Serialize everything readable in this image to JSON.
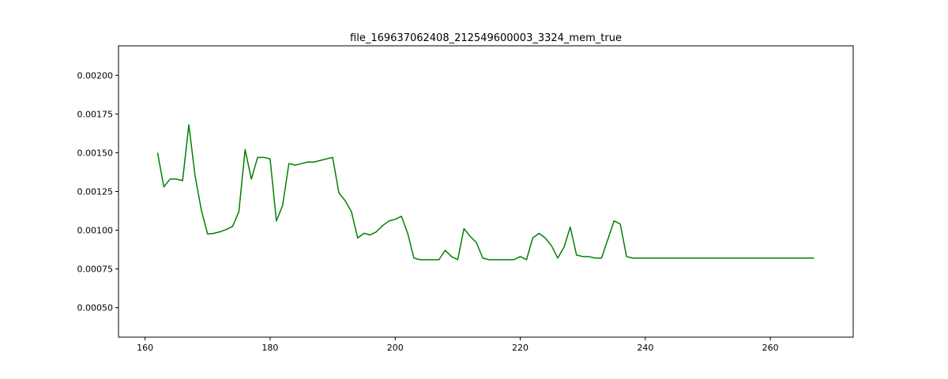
{
  "chart_data": {
    "type": "line",
    "title": "file_169637062408_212549600003_3324_mem_true",
    "xlabel": "",
    "ylabel": "",
    "xlim": [
      155.75,
      273.25
    ],
    "ylim": [
      0.00031,
      0.00219
    ],
    "x_ticks": [
      160,
      180,
      200,
      220,
      240,
      260
    ],
    "x_tick_labels": [
      "160",
      "180",
      "200",
      "220",
      "240",
      "260"
    ],
    "y_ticks": [
      0.0005,
      0.00075,
      0.001,
      0.00125,
      0.0015,
      0.00175,
      0.002
    ],
    "y_tick_labels": [
      "0.00050",
      "0.00075",
      "0.00100",
      "0.00125",
      "0.00150",
      "0.00175",
      "0.00200"
    ],
    "grid": false,
    "legend": "none",
    "series": [
      {
        "color": "#008000",
        "x": [
          162,
          163,
          164,
          165,
          166,
          167,
          168,
          169,
          170,
          171,
          172,
          173,
          174,
          175,
          176,
          177,
          178,
          179,
          180,
          181,
          182,
          183,
          184,
          185,
          186,
          187,
          188,
          189,
          190,
          191,
          192,
          193,
          194,
          195,
          196,
          197,
          198,
          199,
          200,
          201,
          202,
          203,
          204,
          205,
          206,
          207,
          208,
          209,
          210,
          211,
          212,
          213,
          214,
          215,
          216,
          217,
          218,
          219,
          220,
          221,
          222,
          223,
          224,
          225,
          226,
          227,
          228,
          229,
          230,
          231,
          232,
          233,
          234,
          235,
          236,
          237,
          238,
          239,
          240,
          241,
          242,
          243,
          244,
          245,
          246,
          247,
          248,
          249,
          250,
          251,
          252,
          253,
          254,
          255,
          256,
          257,
          258,
          259,
          260,
          261,
          262,
          263,
          264,
          265,
          266,
          267
        ],
        "y": [
          0.0015,
          0.00128,
          0.00133,
          0.00133,
          0.00132,
          0.00168,
          0.00135,
          0.00113,
          0.000975,
          0.00098,
          0.00099,
          0.001005,
          0.001025,
          0.00112,
          0.00152,
          0.00133,
          0.00147,
          0.00147,
          0.00146,
          0.00106,
          0.00116,
          0.00143,
          0.00142,
          0.00143,
          0.00144,
          0.00144,
          0.00145,
          0.00146,
          0.00147,
          0.00124,
          0.00119,
          0.00112,
          0.00095,
          0.00098,
          0.00097,
          0.00099,
          0.00103,
          0.00106,
          0.00107,
          0.00109,
          0.00098,
          0.00082,
          0.00081,
          0.00081,
          0.00081,
          0.00081,
          0.00087,
          0.00083,
          0.00081,
          0.00101,
          0.00096,
          0.00092,
          0.00082,
          0.00081,
          0.00081,
          0.00081,
          0.00081,
          0.00081,
          0.00083,
          0.00081,
          0.00095,
          0.00098,
          0.00095,
          0.0009,
          0.00082,
          0.00089,
          0.00102,
          0.00084,
          0.00083,
          0.00083,
          0.00082,
          0.00082,
          0.00094,
          0.00106,
          0.00104,
          0.00083,
          0.00082,
          0.00082,
          0.00082,
          0.00082,
          0.00082,
          0.00082,
          0.00082,
          0.00082,
          0.00082,
          0.00082,
          0.00082,
          0.00082,
          0.00082,
          0.00082,
          0.00082,
          0.00082,
          0.00082,
          0.00082,
          0.00082,
          0.00082,
          0.00082,
          0.00082,
          0.00082,
          0.00082,
          0.00082,
          0.00082,
          0.00082,
          0.00082,
          0.00082,
          0.00082
        ]
      }
    ]
  }
}
